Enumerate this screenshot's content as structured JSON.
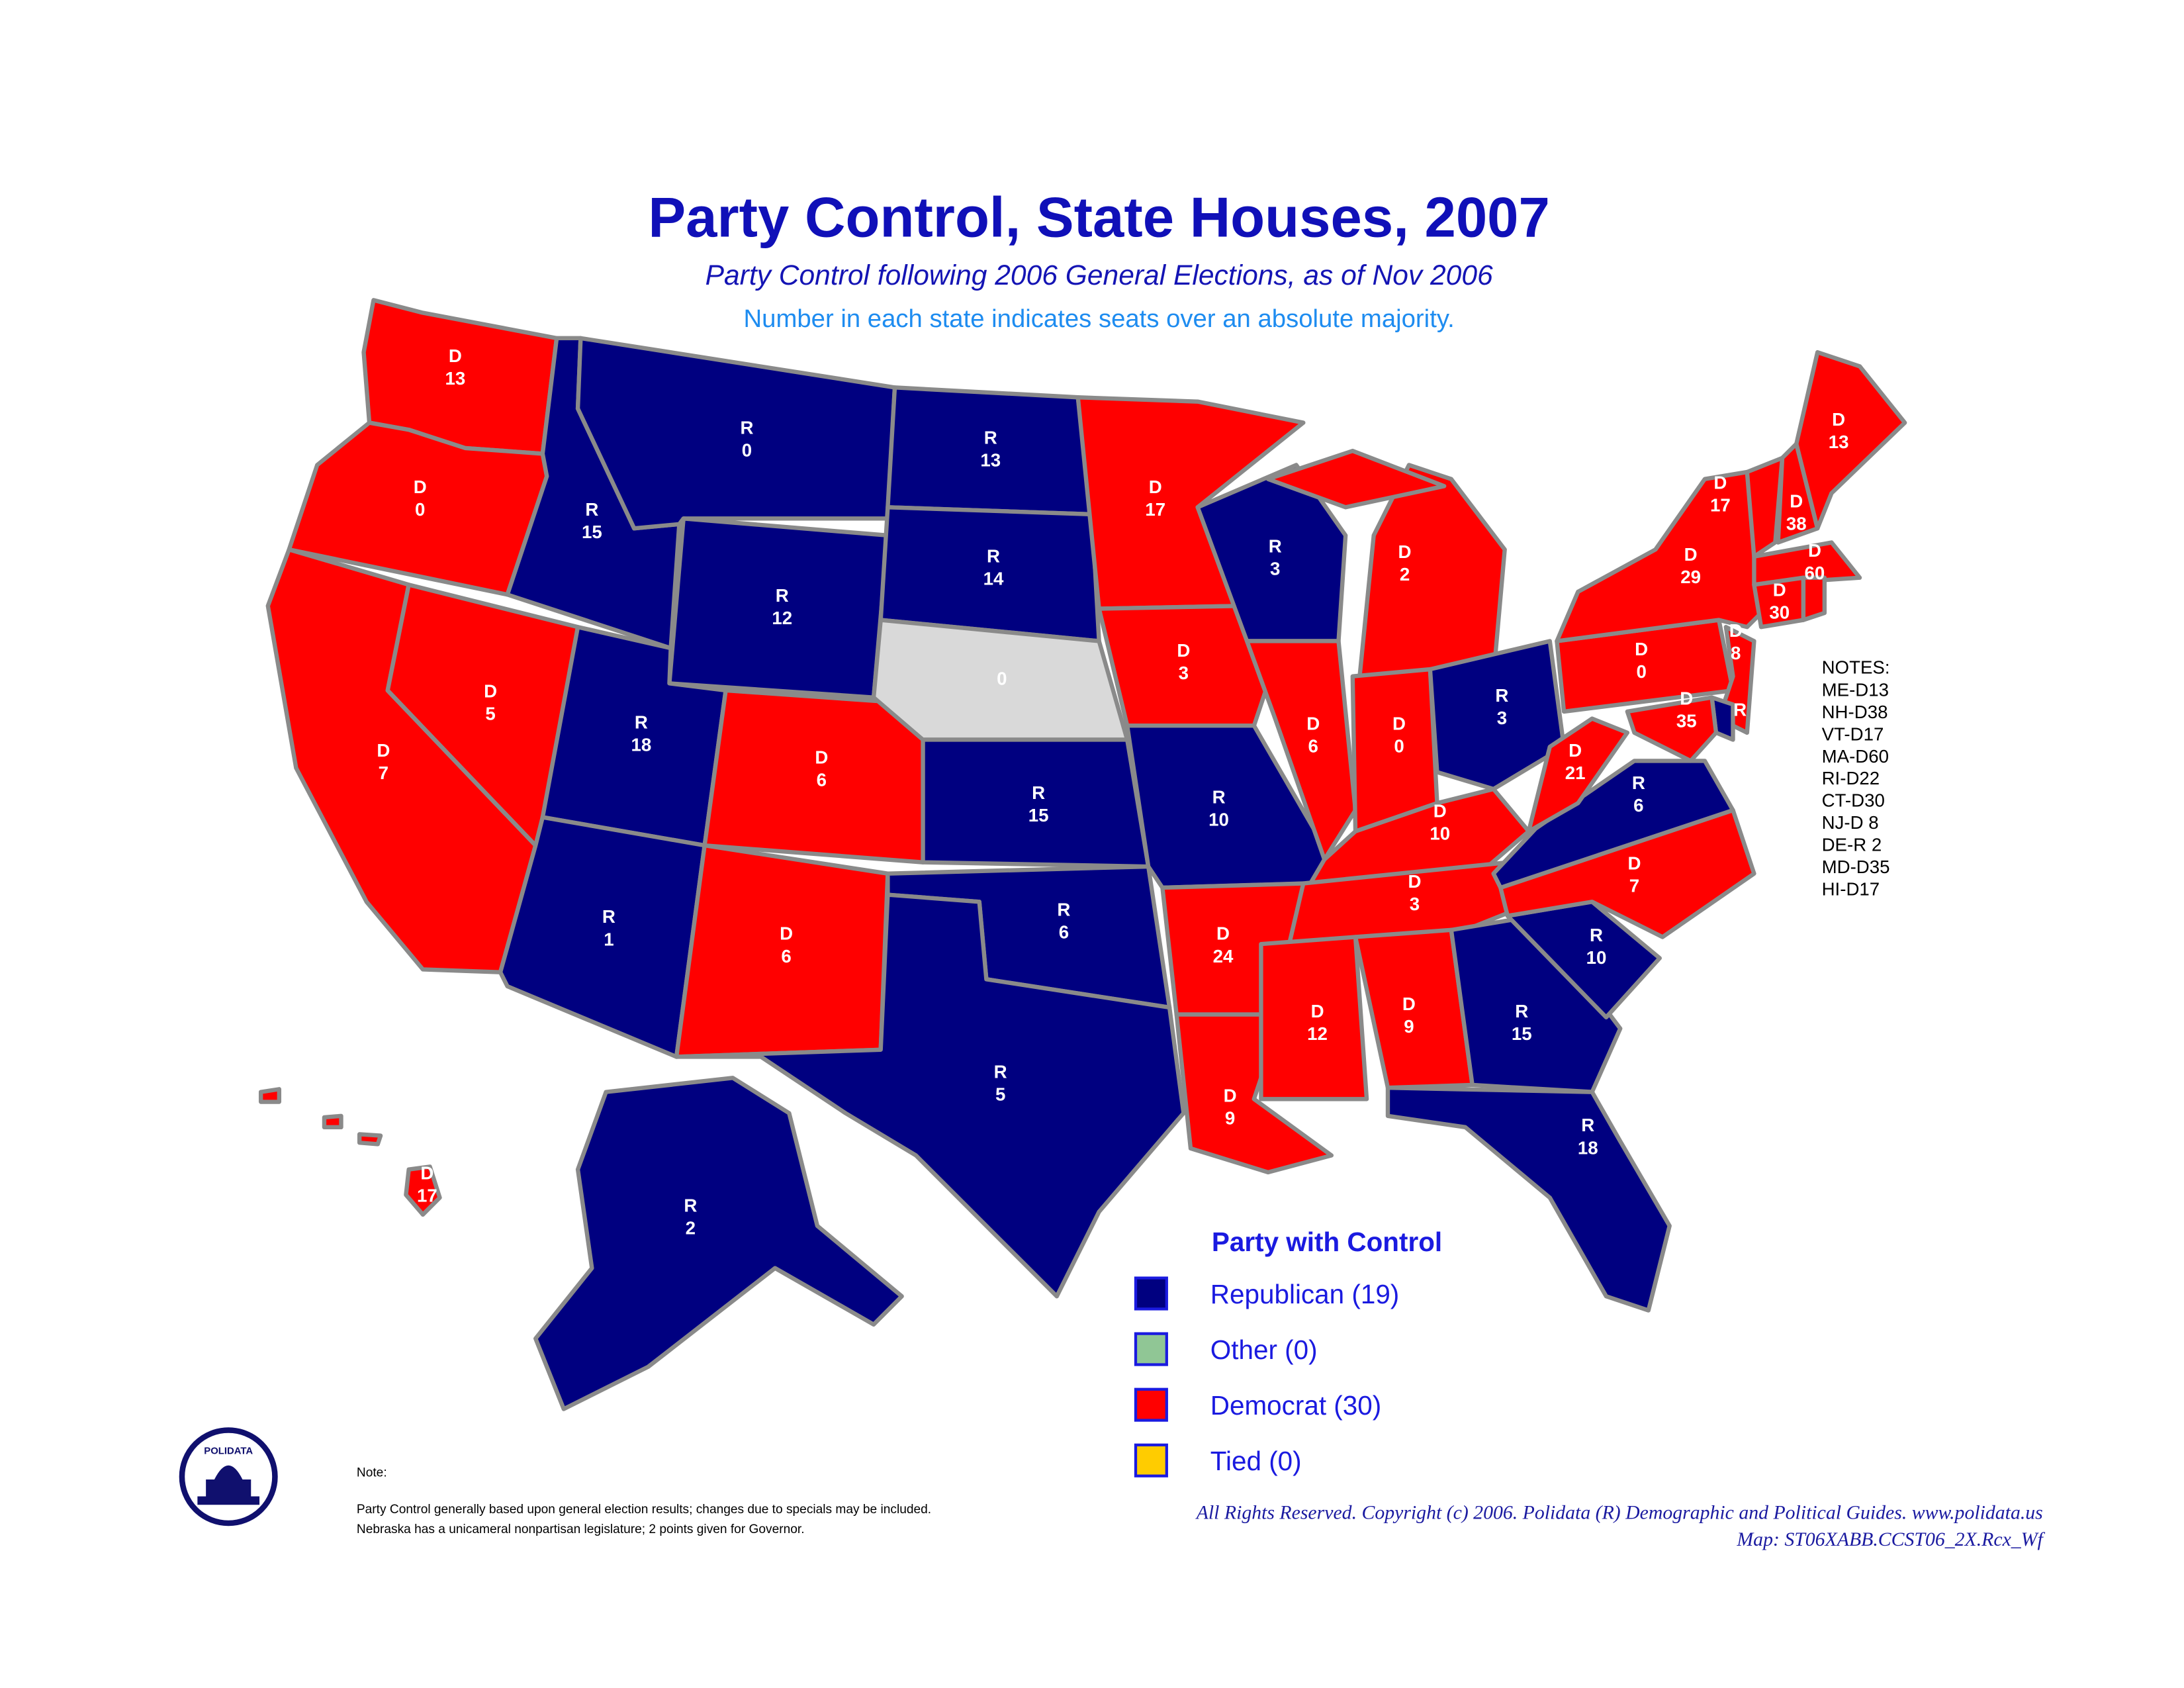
{
  "header": {
    "title": "Party Control, State Houses, 2007",
    "subtitle": "Party Control following 2006 General Elections, as of Nov 2006",
    "description": "Number in each state indicates seats over an absolute majority."
  },
  "states": [
    {
      "party": "D",
      "seats": 13,
      "color": "#ff0000"
    },
    {
      "party": "D",
      "seats": 0,
      "color": "#ff0000"
    },
    {
      "party": "D",
      "seats": 7,
      "color": "#ff0000"
    },
    {
      "party": "D",
      "seats": 5,
      "color": "#ff0000"
    },
    {
      "party": "R",
      "seats": 15,
      "color": "#000080"
    },
    {
      "party": "R",
      "seats": 0,
      "color": "#000080"
    },
    {
      "party": "R",
      "seats": 12,
      "color": "#000080"
    },
    {
      "party": "R",
      "seats": 18,
      "color": "#000080"
    },
    {
      "party": "D",
      "seats": 6,
      "color": "#ff0000"
    },
    {
      "party": "R",
      "seats": 1,
      "color": "#000080"
    },
    {
      "party": "D",
      "seats": 6,
      "color": "#ff0000"
    },
    {
      "party": "R",
      "seats": 13,
      "color": "#000080"
    },
    {
      "party": "R",
      "seats": 14,
      "color": "#000080"
    },
    {
      "seats": 0,
      "color": "#d9d9d9"
    },
    {
      "party": "R",
      "seats": 15,
      "color": "#000080"
    },
    {
      "party": "R",
      "seats": 6,
      "color": "#000080"
    },
    {
      "party": "R",
      "seats": 5,
      "color": "#000080"
    },
    {
      "party": "D",
      "seats": 17,
      "color": "#ff0000"
    },
    {
      "party": "D",
      "seats": 3,
      "color": "#ff0000"
    },
    {
      "party": "R",
      "seats": 10,
      "color": "#000080"
    },
    {
      "party": "D",
      "seats": 24,
      "color": "#ff0000"
    },
    {
      "party": "D",
      "seats": 9,
      "color": "#ff0000"
    },
    {
      "party": "R",
      "seats": 3,
      "color": "#000080"
    },
    {
      "party": "D",
      "seats": 6,
      "color": "#ff0000"
    },
    {
      "party": "D",
      "seats": 2,
      "color": "#ff0000"
    },
    {
      "party": "D",
      "seats": 0,
      "color": "#ff0000"
    },
    {
      "party": "R",
      "seats": 3,
      "color": "#000080"
    },
    {
      "party": "D",
      "seats": 10,
      "color": "#ff0000"
    },
    {
      "party": "D",
      "seats": 3,
      "color": "#ff0000"
    },
    {
      "party": "D",
      "seats": 12,
      "color": "#ff0000"
    },
    {
      "party": "D",
      "seats": 9,
      "color": "#ff0000"
    },
    {
      "party": "R",
      "seats": 15,
      "color": "#000080"
    },
    {
      "party": "R",
      "seats": 18,
      "color": "#000080"
    },
    {
      "party": "R",
      "seats": 10,
      "color": "#000080"
    },
    {
      "party": "D",
      "seats": 7,
      "color": "#ff0000"
    },
    {
      "party": "R",
      "seats": 6,
      "color": "#000080"
    },
    {
      "party": "D",
      "seats": 21,
      "color": "#ff0000"
    },
    {
      "party": "D",
      "seats": 0,
      "color": "#ff0000"
    },
    {
      "party": "D",
      "seats": 29,
      "color": "#ff0000"
    },
    {
      "party": "D",
      "seats": 17,
      "color": "#ff0000"
    },
    {
      "party": "D",
      "seats": 38,
      "color": "#ff0000"
    },
    {
      "party": "D",
      "seats": 13,
      "color": "#ff0000"
    },
    {
      "party": "D",
      "seats": 60,
      "color": "#ff0000"
    },
    {
      "party": "D",
      "seats": 30,
      "color": "#ff0000"
    },
    {
      "color": "#ff0000"
    },
    {
      "party": "D",
      "seats": 8,
      "color": "#ff0000"
    },
    {
      "party": "R",
      "color": "#000080"
    },
    {
      "party": "D",
      "seats": 35,
      "color": "#ff0000"
    },
    {
      "party": "R",
      "seats": 2,
      "color": "#000080"
    },
    {
      "party": "D",
      "seats": 17,
      "color": "#ff0000"
    }
  ],
  "notes": {
    "heading": "NOTES:",
    "lines": [
      "ME-D13",
      "NH-D38",
      "VT-D17",
      "MA-D60",
      "RI-D22",
      "CT-D30",
      "NJ-D 8",
      "DE-R 2",
      "MD-D35",
      "HI-D17"
    ]
  },
  "legend": {
    "title": "Party with Control",
    "items": [
      {
        "label": "Republican (19)",
        "color": "#000080"
      },
      {
        "label": "Other (0)",
        "color": "#90c695"
      },
      {
        "label": "Democrat (30)",
        "color": "#ff0000"
      },
      {
        "label": "Tied (0)",
        "color": "#ffcc00"
      }
    ]
  },
  "footnote": {
    "heading": "Note:",
    "lines": [
      "Party Control generally based upon general election results; changes due to specials may be included.",
      "Nebraska has a unicameral nonpartisan legislature;  2 points given for Governor."
    ]
  },
  "credits": {
    "copyright": "All Rights Reserved. Copyright (c) 2006. Polidata (R) Demographic and Political Guides. www.polidata.us",
    "map_id": "Map: ST06XABB.CCST06_2X.Rcx_Wf"
  },
  "logo": {
    "text": "POLIDATA"
  }
}
